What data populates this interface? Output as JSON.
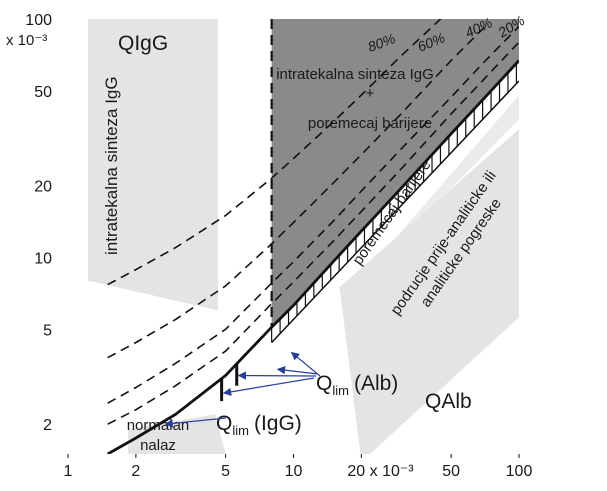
{
  "chart_data": {
    "type": "line",
    "xscale": "log",
    "yscale": "log",
    "xlim": [
      1,
      100
    ],
    "ylim": [
      1.5,
      100
    ],
    "x_ticks": [
      {
        "value": 1,
        "label": "1"
      },
      {
        "value": 2,
        "label": "2"
      },
      {
        "value": 5,
        "label": "5"
      },
      {
        "value": 10,
        "label": "10"
      },
      {
        "value": 20,
        "label": "20 x 10⁻³"
      },
      {
        "value": 50,
        "label": "50"
      },
      {
        "value": 100,
        "label": "100"
      }
    ],
    "y_ticks": [
      {
        "value": 2,
        "label": "2"
      },
      {
        "value": 5,
        "label": "5"
      },
      {
        "value": 10,
        "label": "10"
      },
      {
        "value": 20,
        "label": "20"
      },
      {
        "value": 50,
        "label": "50"
      },
      {
        "value": 100,
        "label": "100"
      }
    ],
    "y_exponent_label": "x 10⁻³",
    "ylabel": "QIgG",
    "xlabel": "QAlb",
    "qlim_x": 8,
    "series": [
      {
        "name": "Qlim (IgG)",
        "style": "solid",
        "x": [
          1.5,
          2,
          3,
          5,
          8,
          10,
          15,
          20,
          30,
          50,
          70,
          100
        ],
        "y": [
          1.5,
          1.75,
          2.2,
          3.2,
          5.1,
          6.3,
          9.6,
          12.9,
          19.5,
          33,
          46.5,
          67
        ]
      },
      {
        "name": "20%",
        "style": "dashed",
        "x": [
          1.5,
          2,
          3,
          5,
          8,
          10,
          15,
          20,
          30,
          50,
          70,
          100
        ],
        "y": [
          2.0,
          2.3,
          2.9,
          4.05,
          6.4,
          7.9,
          11.7,
          15.6,
          23.5,
          40,
          56,
          80
        ]
      },
      {
        "name": "40%",
        "style": "dashed",
        "x": [
          1.5,
          2,
          3,
          5,
          8,
          10,
          15,
          20,
          30,
          50,
          70,
          100
        ],
        "y": [
          2.45,
          2.85,
          3.6,
          5.0,
          7.8,
          9.6,
          14.2,
          19,
          28.5,
          47,
          66,
          93
        ]
      },
      {
        "name": "60%",
        "style": "dashed",
        "x": [
          1.5,
          2,
          3,
          5,
          8,
          10,
          15,
          20,
          30,
          50,
          70
        ],
        "y": [
          3.8,
          4.4,
          5.5,
          7.6,
          11.4,
          14,
          20.5,
          27,
          40,
          67,
          92
        ]
      },
      {
        "name": "80%",
        "style": "dashed",
        "x": [
          1.5,
          2,
          3,
          5,
          8,
          10,
          15,
          20,
          30,
          50
        ],
        "y": [
          7.7,
          8.9,
          11,
          15,
          21.5,
          26,
          37,
          48,
          70,
          110
        ]
      }
    ],
    "pct_labels": [
      "80%",
      "60%",
      "40%",
      "20%"
    ],
    "zones": {
      "intrathecal_left": "intratekalna sinteza IgG",
      "intrathecal_right_line1": "intratekalna sinteza IgG",
      "intrathecal_right_plus": "+",
      "intrathecal_right_line2": "poremecaj barijere",
      "barrier": "poremecaj barijere",
      "error_line1": "podrucje prije-analiticke ili",
      "error_line2": "analiticke pogreske",
      "normal_line1": "normalan",
      "normal_line2": "nalaz"
    },
    "annotations": {
      "qlim_alb": "Q",
      "qlim_alb_sub": "lim",
      "qlim_alb_rest": "(Alb)",
      "qlim_igg": "Q",
      "qlim_igg_sub": "lim",
      "qlim_igg_rest": "(IgG)"
    }
  },
  "colors": {
    "dark_zone": "#8a8a8a",
    "light_zone": "#e4e4e4",
    "line": "#111111",
    "arrow": "#2a3f9a"
  }
}
